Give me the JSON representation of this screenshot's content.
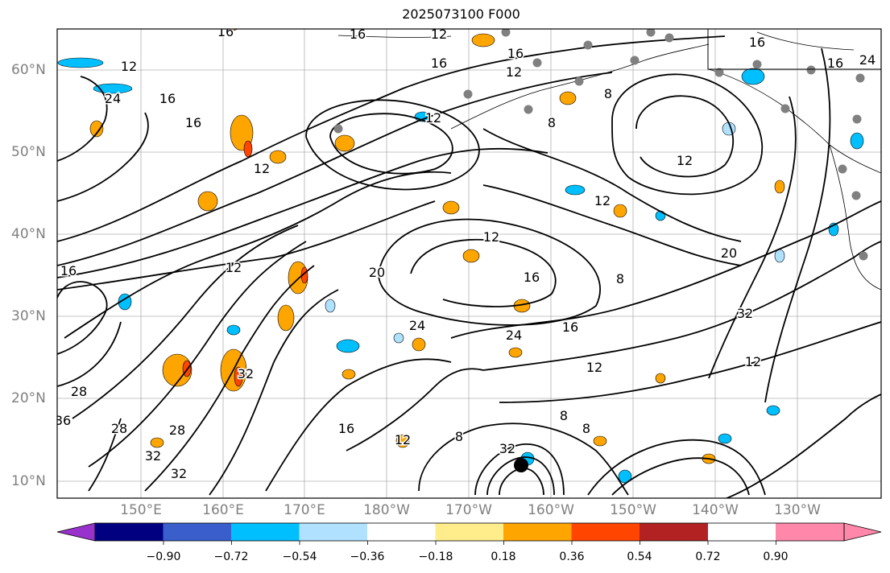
{
  "title": "2025073100 F000",
  "lat_labels": [
    "60°N",
    "50°N",
    "40°N",
    "30°N",
    "20°N",
    "10°N"
  ],
  "lon_labels": [
    "150°E",
    "160°E",
    "170°E",
    "180°W",
    "170°W",
    "160°W",
    "150°W",
    "140°W",
    "130°W"
  ],
  "colorbar": {
    "ticks": [
      "−0.90",
      "−0.72",
      "−0.54",
      "−0.36",
      "−0.18",
      "0.18",
      "0.36",
      "0.54",
      "0.72",
      "0.90"
    ],
    "colors": [
      "#9932cc",
      "#000080",
      "#3a5fcd",
      "#00bfff",
      "#b0e2ff",
      "#ffffff",
      "#ffec8b",
      "#ffa500",
      "#ff4500",
      "#b22222",
      "#ff88aa"
    ]
  },
  "contour_labels": [
    "16",
    "16",
    "12",
    "16",
    "12",
    "16",
    "16",
    "16",
    "24",
    "12",
    "24",
    "16",
    "16",
    "12",
    "12",
    "8",
    "8",
    "12",
    "12",
    "12",
    "16",
    "8",
    "20",
    "32",
    "20",
    "12",
    "16",
    "16",
    "24",
    "24",
    "12",
    "8",
    "32",
    "28",
    "36",
    "28",
    "28",
    "32",
    "32",
    "16",
    "12",
    "8",
    "32",
    "8",
    "12"
  ],
  "colors": {
    "positive": "#ffa500",
    "positive_strong": "#ff4500",
    "negative": "#00bfff",
    "negative_light": "#b0e2ff",
    "station": "#808080",
    "grid": "#b0b0b0"
  }
}
